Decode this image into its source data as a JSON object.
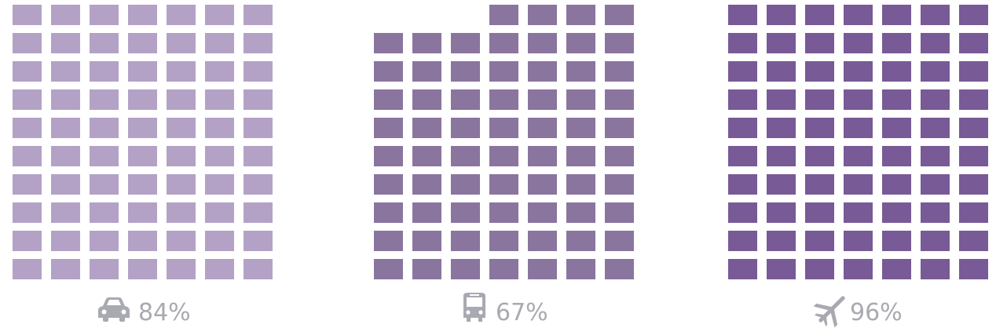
{
  "chart_data": {
    "type": "waffle",
    "title": "",
    "columns_per_group": 7,
    "groups": [
      {
        "name": "car",
        "icon": "car-icon",
        "value": 84,
        "label": "84%",
        "color": "#b3a2c6"
      },
      {
        "name": "bus",
        "icon": "bus-icon",
        "value": 67,
        "label": "67%",
        "color": "#8a759f"
      },
      {
        "name": "plane",
        "icon": "plane-icon",
        "value": 96,
        "label": "96%",
        "color": "#785a96"
      }
    ]
  },
  "icon_color": "#a9a9b1"
}
